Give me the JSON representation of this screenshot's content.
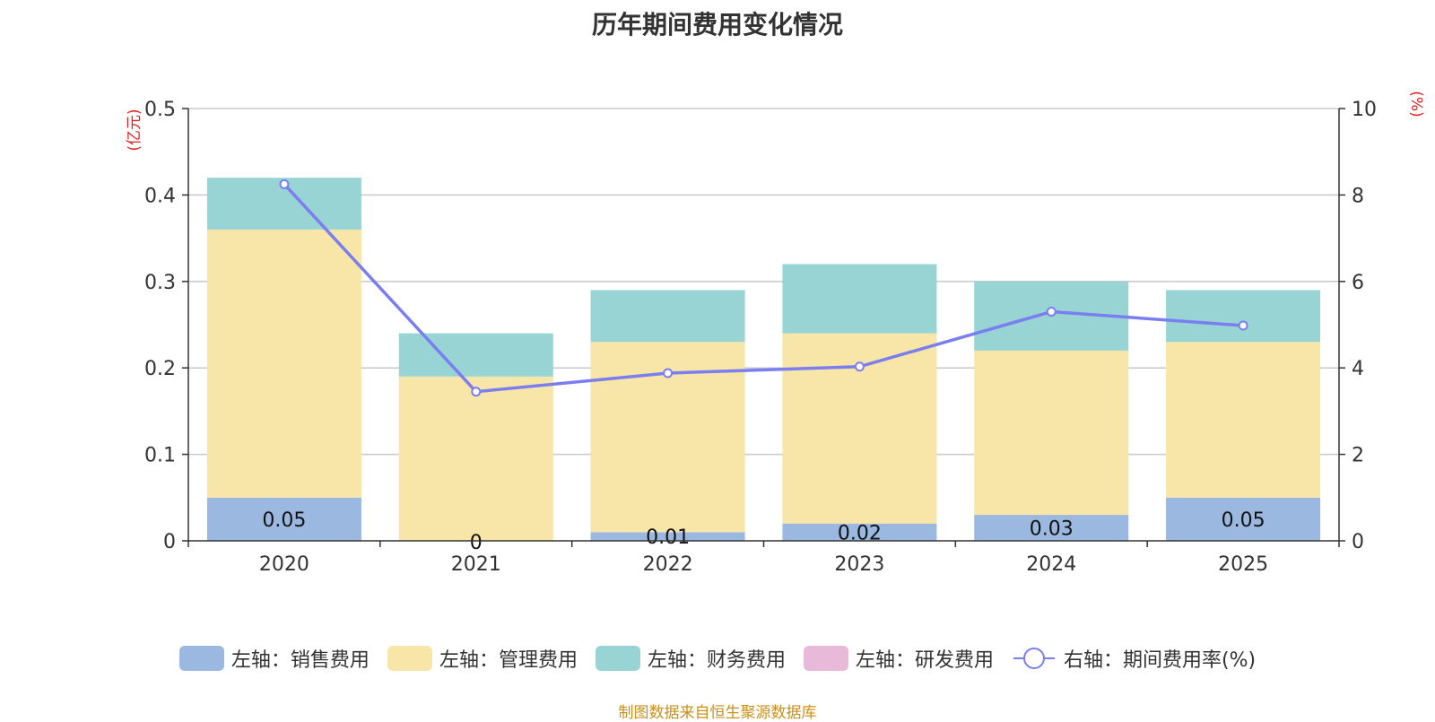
{
  "chart_data": {
    "type": "bar",
    "title": "历年期间费用变化情况",
    "categories": [
      "2020",
      "2021",
      "2022",
      "2023",
      "2024",
      "2025"
    ],
    "left_axis": {
      "unit_label": "(亿元)",
      "ylim": [
        0,
        0.5
      ],
      "ticks": [
        "0",
        "0.1",
        "0.2",
        "0.3",
        "0.4",
        "0.5"
      ],
      "tick_values": [
        0,
        0.1,
        0.2,
        0.3,
        0.4,
        0.5
      ]
    },
    "right_axis": {
      "unit_label": "(%)",
      "ylim": [
        0,
        10
      ],
      "ticks": [
        "0",
        "2",
        "4",
        "6",
        "8",
        "10"
      ],
      "tick_values": [
        0,
        2,
        4,
        6,
        8,
        10
      ]
    },
    "stacked": true,
    "series": [
      {
        "name": "左轴：销售费用",
        "axis": "left",
        "color": "#9bb8e1",
        "values": [
          0.05,
          0,
          0.01,
          0.02,
          0.03,
          0.05
        ],
        "labels": [
          "0.05",
          "0",
          "0.01",
          "0.02",
          "0.03",
          "0.05"
        ]
      },
      {
        "name": "左轴：管理费用",
        "axis": "left",
        "color": "#f7e6a7",
        "values": [
          0.31,
          0.19,
          0.22,
          0.22,
          0.19,
          0.18
        ]
      },
      {
        "name": "左轴：财务费用",
        "axis": "left",
        "color": "#99d4d4",
        "values": [
          0.06,
          0.05,
          0.06,
          0.08,
          0.08,
          0.06
        ]
      },
      {
        "name": "左轴：研发费用",
        "axis": "left",
        "color": "#e8b9d9",
        "values": [
          0,
          0,
          0,
          0,
          0,
          0
        ]
      },
      {
        "name": "右轴：期间费用率(%)",
        "axis": "right",
        "type": "line",
        "color": "#7b7ef0",
        "values": [
          8.25,
          3.45,
          3.88,
          4.03,
          5.3,
          4.98
        ]
      }
    ],
    "grid": true,
    "legend_position": "bottom"
  },
  "source_note": "制图数据来自恒生聚源数据库"
}
